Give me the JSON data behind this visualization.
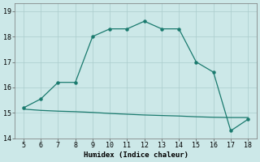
{
  "line1_x": [
    5,
    6,
    7,
    8,
    9,
    10,
    11,
    12,
    13,
    14,
    15,
    16,
    17,
    18
  ],
  "line1_y": [
    15.2,
    15.55,
    16.2,
    16.2,
    18.0,
    18.3,
    18.3,
    18.6,
    18.3,
    18.3,
    17.0,
    16.6,
    14.3,
    14.75
  ],
  "line2_x": [
    5,
    6,
    7,
    8,
    9,
    10,
    11,
    12,
    13,
    14,
    15,
    16,
    17,
    18
  ],
  "line2_y": [
    15.15,
    15.1,
    15.07,
    15.05,
    15.02,
    14.98,
    14.95,
    14.92,
    14.9,
    14.88,
    14.85,
    14.83,
    14.82,
    14.82
  ],
  "line_color": "#1a7a6e",
  "xlabel": "Humidex (Indice chaleur)",
  "xlim": [
    4.5,
    18.5
  ],
  "ylim": [
    14.0,
    19.3
  ],
  "yticks": [
    14,
    15,
    16,
    17,
    18,
    19
  ],
  "xticks": [
    5,
    6,
    7,
    8,
    9,
    10,
    11,
    12,
    13,
    14,
    15,
    16,
    17,
    18
  ],
  "bg_color": "#cce8e8",
  "grid_color": "#aacccc",
  "label_fontsize": 6.5,
  "tick_fontsize": 6
}
